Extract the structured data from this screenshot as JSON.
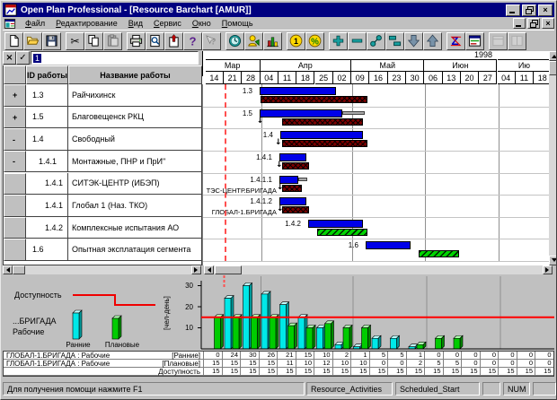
{
  "window": {
    "title": "Open Plan Professional - [Resource Barchart [AMUR]]"
  },
  "menu": {
    "items": [
      "Файл",
      "Редактирование",
      "Вид",
      "Сервис",
      "Окно",
      "Помощь"
    ]
  },
  "toolbar": {
    "buttons": [
      {
        "icon": "new-document"
      },
      {
        "icon": "open-folder"
      },
      {
        "icon": "save"
      },
      {
        "icon": "cut",
        "gap": true
      },
      {
        "icon": "copy"
      },
      {
        "icon": "paste",
        "disabled": true
      },
      {
        "icon": "print",
        "gap": true
      },
      {
        "icon": "print-preview"
      },
      {
        "icon": "update"
      },
      {
        "icon": "help"
      },
      {
        "icon": "context-help",
        "disabled": true
      },
      {
        "icon": "time-analysis",
        "gap": true
      },
      {
        "icon": "resources"
      },
      {
        "icon": "histogram"
      },
      {
        "icon": "cost",
        "gap": true
      },
      {
        "icon": "percent"
      },
      {
        "icon": "add-activity",
        "gap": true
      },
      {
        "icon": "remove-activity"
      },
      {
        "icon": "link-activities"
      },
      {
        "icon": "bar-step"
      },
      {
        "icon": "move-down"
      },
      {
        "icon": "move-up"
      },
      {
        "icon": "sort-z",
        "gap": true
      },
      {
        "icon": "table-view"
      },
      {
        "icon": "view-option-1",
        "gap": true,
        "disabled": true
      },
      {
        "icon": "view-option-2",
        "disabled": true
      }
    ]
  },
  "edit_bar": {
    "value": "1"
  },
  "activity_table": {
    "columns": [
      "ID работы",
      "Название работы"
    ],
    "rows": [
      {
        "indicator": "+",
        "id": "1.3",
        "level": 0,
        "name": "Райчихинск"
      },
      {
        "indicator": "+",
        "id": "1.5",
        "level": 0,
        "name": "Благовещенск РКЦ"
      },
      {
        "indicator": "-",
        "id": "1.4",
        "level": 0,
        "name": "Свободный"
      },
      {
        "indicator": "-",
        "id": "1.4.1",
        "level": 1,
        "name": "Монтажные, ПНР и ПрИ\""
      },
      {
        "indicator": "",
        "id": "1.4.1",
        "level": 2,
        "name": "СИТЭК-ЦЕНТР (ИБЭП)"
      },
      {
        "indicator": "",
        "id": "1.4.1",
        "level": 2,
        "name": "Глобал 1 (Наз. ТКО)"
      },
      {
        "indicator": "",
        "id": "1.4.2",
        "level": 2,
        "name": "Комплексные испытания АО"
      },
      {
        "indicator": "",
        "id": "1.6",
        "level": 0,
        "name": "Опытная эксплатация сегмента"
      }
    ]
  },
  "timeline": {
    "year": "1998",
    "months": [
      {
        "label": "Мар",
        "weeks": 3
      },
      {
        "label": "Апр",
        "weeks": 5
      },
      {
        "label": "Май",
        "weeks": 4
      },
      {
        "label": "Июн",
        "weeks": 4
      },
      {
        "label": "Ию",
        "weeks": 3
      }
    ],
    "weeks": [
      "14",
      "21",
      "28",
      "04",
      "11",
      "18",
      "25",
      "02",
      "09",
      "16",
      "23",
      "30",
      "06",
      "13",
      "20",
      "27",
      "04",
      "11",
      "18"
    ],
    "time_now_week": 1
  },
  "gantt": {
    "rows": [
      {
        "label": "1.3",
        "early": [
          2.92,
          7.1
        ],
        "late": [
          2.97,
          8.83
        ]
      },
      {
        "label": "1.5",
        "early": [
          2.92,
          7.45
        ],
        "cap": [
          7.45,
          8.68
        ],
        "late": [
          4.15,
          8.58
        ],
        "arrow": 2.85
      },
      {
        "label": "1.4",
        "early": [
          4.05,
          8.58
        ],
        "late": [
          4.15,
          8.83
        ],
        "arrow": 3.85
      },
      {
        "label": "1.4.1",
        "early": [
          4.0,
          5.48
        ],
        "late": [
          4.15,
          5.63
        ],
        "arrow": 3.9
      },
      {
        "label": "1.4.1.1",
        "early": [
          4.0,
          5.04
        ],
        "cap": [
          5.04,
          5.53
        ],
        "late": [
          4.15,
          5.24
        ],
        "arrow": 3.95,
        "late_label": "ТЭС-ЦЕНТР.БРИГАДА"
      },
      {
        "label": "1.4.1.2",
        "early": [
          4.0,
          5.48
        ],
        "late": [
          4.15,
          5.63
        ],
        "arrow": 3.95,
        "late_label": "ГЛОБАЛ-1.БРИГАДА"
      },
      {
        "label": "1.4.2",
        "early": [
          5.58,
          8.58
        ],
        "done": [
          6.07,
          8.83
        ]
      },
      {
        "label": "1.6",
        "early": [
          8.73,
          11.2
        ],
        "done": [
          11.64,
          13.86
        ]
      }
    ]
  },
  "legend": {
    "availability": "Доступность",
    "resource_line1": "...БРИГАДА",
    "resource_line2": "Рабочие",
    "early_label": "Ранние",
    "planned_label": "Плановые",
    "ylabel": "[чел-день]",
    "yticks": [
      30,
      20,
      10
    ]
  },
  "chart_data": {
    "type": "bar",
    "categories": [
      "14",
      "21",
      "28",
      "04",
      "11",
      "18",
      "25",
      "02",
      "09",
      "16",
      "23",
      "30",
      "06",
      "13",
      "20",
      "27",
      "04",
      "11",
      "18"
    ],
    "series": [
      {
        "name": "Ранние",
        "type": "bar",
        "color": "#00e8e8",
        "values": [
          0,
          24,
          30,
          26,
          21,
          15,
          10,
          2,
          1,
          5,
          5,
          1,
          0,
          0,
          0,
          0,
          0,
          0,
          0
        ]
      },
      {
        "name": "Плановые",
        "type": "bar",
        "color": "#00cc00",
        "values": [
          15,
          15,
          15,
          15,
          11,
          10,
          12,
          10,
          10,
          0,
          0,
          2,
          5,
          5,
          0,
          0,
          0,
          0,
          0
        ]
      },
      {
        "name": "Доступность",
        "type": "line",
        "color": "#ff0000",
        "values": [
          15,
          15,
          15,
          15,
          15,
          15,
          15,
          15,
          15,
          15,
          15,
          15,
          15,
          15,
          15,
          15,
          15,
          15,
          15
        ]
      }
    ],
    "ylabel": "[чел-день]",
    "yticks": [
      10,
      20,
      30
    ],
    "ylim": [
      0,
      33
    ],
    "grid": "month-lines",
    "legend_position": "left"
  },
  "resource_table": {
    "rows": [
      {
        "label": "ГЛОБАЛ-1.БРИГАДА : Рабочие",
        "tag": "[Ранние]",
        "values": [
          0,
          24,
          30,
          26,
          21,
          15,
          10,
          2,
          1,
          5,
          5,
          1,
          0,
          0,
          0,
          0,
          0,
          0,
          0
        ]
      },
      {
        "label": "ГЛОБАЛ-1.БРИГАДА : Рабочие",
        "tag": "[Плановые]",
        "values": [
          15,
          15,
          15,
          15,
          11,
          10,
          12,
          10,
          10,
          0,
          0,
          2,
          5,
          5,
          0,
          0,
          0,
          0,
          0
        ]
      },
      {
        "label": "",
        "tag": "Доступность",
        "values": [
          15,
          15,
          15,
          15,
          15,
          15,
          15,
          15,
          15,
          15,
          15,
          15,
          15,
          15,
          15,
          15,
          15,
          15,
          15
        ]
      }
    ]
  },
  "statusbar": {
    "help": "Для получения помощи нажмите F1",
    "panels": [
      "Resource_Activities",
      "Scheduled_Start",
      "",
      "NUM",
      ""
    ]
  },
  "colors": {
    "titlebar": "#000080",
    "early_bar": "#0000e8",
    "late_bar": "#7a0000",
    "done_bar": "#00d400",
    "availability_line": "#ff0000",
    "hist_early": "#00e8e8",
    "hist_planned": "#00cc00"
  }
}
